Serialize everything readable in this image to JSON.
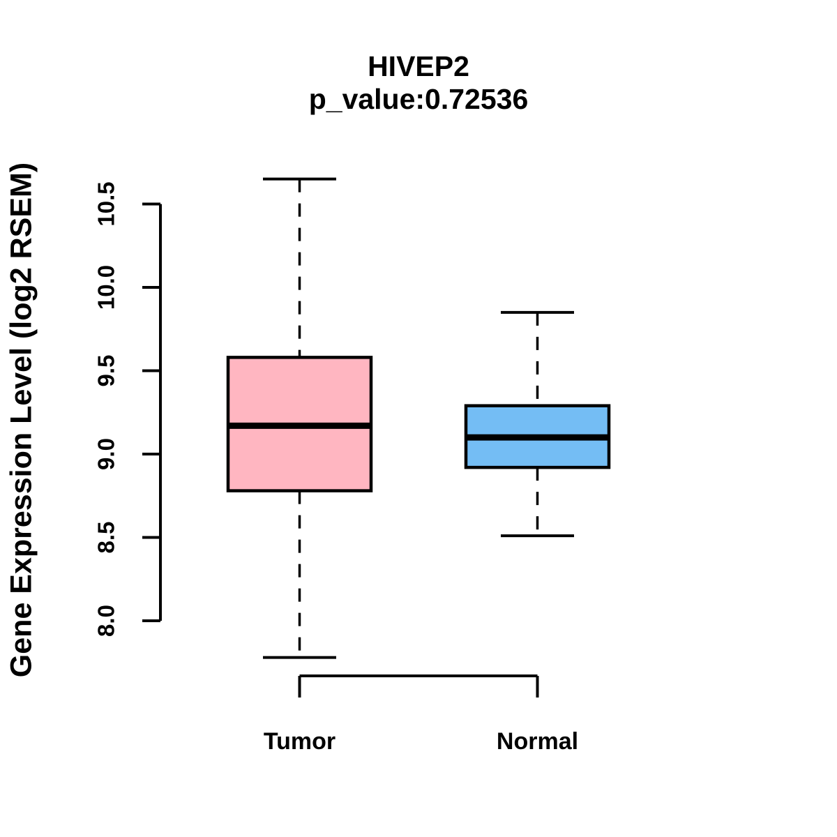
{
  "page": {
    "background": "#ffffff",
    "text_color": "#000000"
  },
  "chart_data": {
    "type": "boxplot",
    "title": "HIVEP2",
    "subtitle": "p_value:0.72536",
    "ylabel": "Gene Expression Level (log2 RSEM)",
    "ylim": [
      8.0,
      10.5
    ],
    "yticks": [
      8.0,
      8.5,
      9.0,
      9.5,
      10.0,
      10.5
    ],
    "ytick_labels": [
      "8.0",
      "8.5",
      "9.0",
      "9.5",
      "10.0",
      "10.5"
    ],
    "grid": "off",
    "legend": "none",
    "categories": [
      "Tumor",
      "Normal"
    ],
    "series": [
      {
        "name": "Tumor",
        "color": "#FFB6C1",
        "whisker_low": 7.78,
        "q1": 8.78,
        "median": 9.17,
        "q3": 9.58,
        "whisker_high": 10.65
      },
      {
        "name": "Normal",
        "color": "#74BDF4",
        "whisker_low": 8.51,
        "q1": 8.92,
        "median": 9.1,
        "q3": 9.29,
        "whisker_high": 9.85
      }
    ],
    "line_color": "#000000"
  }
}
